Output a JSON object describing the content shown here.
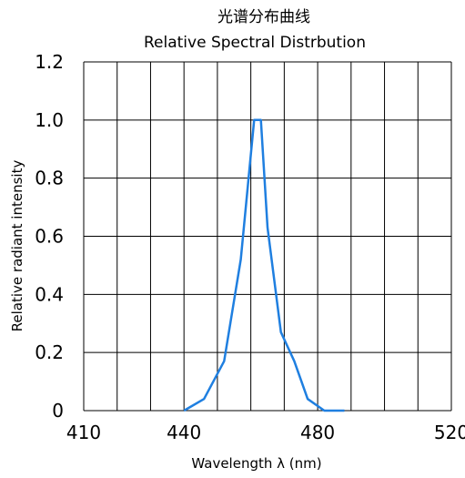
{
  "chart_data": {
    "type": "line",
    "title": "光谱分布曲线",
    "subtitle": "Relative Spectral Distrbution",
    "xlabel": "Wavelength  λ (nm)",
    "ylabel": "Relative radiant intensity",
    "xlim": [
      410,
      520
    ],
    "ylim": [
      0,
      1.2
    ],
    "x_tick_labels": [
      "410",
      "440",
      "480",
      "520"
    ],
    "x_tick_values": [
      410,
      440,
      480,
      520
    ],
    "y_tick_labels": [
      "0",
      "0.2",
      "0.4",
      "0.6",
      "0.8",
      "1.0",
      "1.2"
    ],
    "y_tick_values": [
      0,
      0.2,
      0.4,
      0.6,
      0.8,
      1.0,
      1.2
    ],
    "x_grid_step": 10,
    "y_grid_step": 0.2,
    "grid": true,
    "legend": "none",
    "line_color": "#1f7fe0",
    "series": [
      {
        "x": [
          440,
          446,
          452,
          457,
          461,
          463,
          465,
          469,
          473,
          477,
          482,
          488
        ],
        "y": [
          0,
          0.04,
          0.17,
          0.52,
          1.0,
          1.0,
          0.63,
          0.27,
          0.17,
          0.04,
          0,
          0
        ]
      }
    ]
  }
}
